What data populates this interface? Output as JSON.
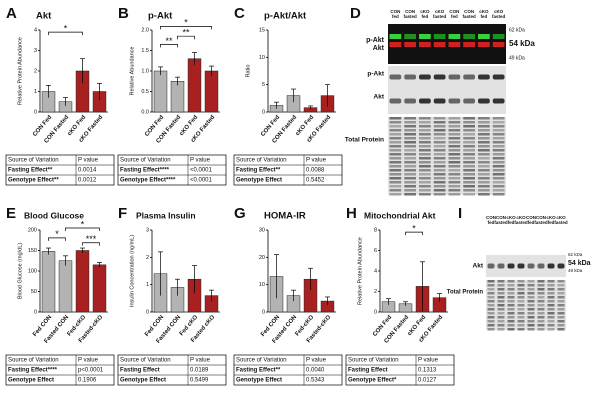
{
  "chart_data": [
    {
      "type": "bar",
      "panel": "A",
      "title": "Akt",
      "ylabel": "Relative Protein Abundance",
      "categories": [
        "CON Fed",
        "CON Fasted",
        "cKO Fed",
        "cKO Fasted"
      ],
      "values": [
        1.0,
        0.5,
        2.0,
        1.0
      ],
      "errors": [
        0.3,
        0.2,
        0.6,
        0.4
      ],
      "colors": [
        "#b3b3b3",
        "#b3b3b3",
        "#a82020",
        "#a82020"
      ],
      "ylim": [
        0,
        4
      ],
      "yticks": [
        0,
        1,
        2,
        3,
        4
      ],
      "annotations": [
        "*"
      ],
      "stats": {
        "header": [
          "Source of Variation",
          "P value"
        ],
        "rows": [
          [
            "Fasting Effect**",
            "0.0014"
          ],
          [
            "Genotype Effect**",
            "0.0012"
          ]
        ]
      }
    },
    {
      "type": "bar",
      "panel": "B",
      "title": "p-Akt",
      "ylabel": "Relative Abundance",
      "categories": [
        "CON Fed",
        "CON Fasted",
        "cKO Fed",
        "cKO Fasted"
      ],
      "values": [
        1.0,
        0.75,
        1.3,
        1.0
      ],
      "errors": [
        0.1,
        0.1,
        0.15,
        0.12
      ],
      "colors": [
        "#b3b3b3",
        "#b3b3b3",
        "#a82020",
        "#a82020"
      ],
      "ylim": [
        0,
        2
      ],
      "yticks": [
        {
          "value": 0,
          "label": "0.0"
        },
        {
          "value": 0.5,
          "label": "0.5"
        },
        {
          "value": 1,
          "label": "1.0"
        },
        {
          "value": 1.5,
          "label": "1.5"
        },
        {
          "value": 2,
          "label": "2.0"
        }
      ],
      "annotations": [
        "*",
        "**",
        "**"
      ],
      "stats": {
        "header": [
          "Source of Variation",
          "P value"
        ],
        "rows": [
          [
            "Fasting Effect****",
            "<0.0001"
          ],
          [
            "Genotype Effect****",
            "<0.0001"
          ]
        ]
      }
    },
    {
      "type": "bar",
      "panel": "C",
      "title": "p-Akt/Akt",
      "ylabel": "Ratio",
      "categories": [
        "CON Fed",
        "CON Fasted",
        "cKO Fed",
        "cKO Fasted"
      ],
      "values": [
        1.2,
        3.0,
        0.8,
        3.0
      ],
      "errors": [
        0.6,
        1.2,
        0.3,
        2.0
      ],
      "colors": [
        "#b3b3b3",
        "#b3b3b3",
        "#a82020",
        "#a82020"
      ],
      "ylim": [
        0,
        15
      ],
      "yticks": [
        0,
        5,
        10,
        15
      ],
      "annotations": [],
      "stats": {
        "header": [
          "Source of Variation",
          "P value"
        ],
        "rows": [
          [
            "Fasting Effect**",
            "0.0088"
          ],
          [
            "Genotype Effect",
            "0.5452"
          ]
        ]
      }
    },
    {
      "type": "bar",
      "panel": "E",
      "title": "Blood Glucose",
      "ylabel": "Blood Glucose (mg/dL)",
      "categories": [
        "Fed CON",
        "Fasted CON",
        "Fed-cKO",
        "Fasted-cKO"
      ],
      "values": [
        148,
        125,
        150,
        115
      ],
      "errors": [
        8,
        12,
        6,
        6
      ],
      "colors": [
        "#b3b3b3",
        "#b3b3b3",
        "#a82020",
        "#a82020"
      ],
      "ylim": [
        0,
        200
      ],
      "yticks": [
        0,
        50,
        100,
        150,
        200
      ],
      "annotations": [
        "*",
        "*",
        "***"
      ],
      "stats": {
        "header": [
          "Source of Variation",
          "P value"
        ],
        "rows": [
          [
            "Fasting Effect****",
            "p<0.0001"
          ],
          [
            "Genotype Effect",
            "0.1906"
          ]
        ]
      }
    },
    {
      "type": "bar",
      "panel": "F",
      "title": "Plasma Insulin",
      "ylabel": "Insulin Concentration (ng/mL)",
      "categories": [
        "Fed CON",
        "Fasted CON",
        "Fed cKO",
        "Fasted cKO"
      ],
      "values": [
        1.4,
        0.9,
        1.2,
        0.6
      ],
      "errors": [
        0.8,
        0.3,
        0.5,
        0.2
      ],
      "colors": [
        "#b3b3b3",
        "#b3b3b3",
        "#a82020",
        "#a82020"
      ],
      "ylim": [
        0,
        3
      ],
      "yticks": [
        0,
        1,
        2,
        3
      ],
      "annotations": [],
      "stats": {
        "header": [
          "Source of Variation",
          "P value"
        ],
        "rows": [
          [
            "Fasting Effect",
            "0.0189"
          ],
          [
            "Genotype Effect",
            "0.5499"
          ]
        ]
      }
    },
    {
      "type": "bar",
      "panel": "G",
      "title": "HOMA-IR",
      "ylabel": "",
      "categories": [
        "Fed CON",
        "Fasted CON",
        "Fed-cKO",
        "Fasted-cKO"
      ],
      "values": [
        13,
        6,
        12,
        4
      ],
      "errors": [
        8,
        2,
        4,
        1.5
      ],
      "colors": [
        "#b3b3b3",
        "#b3b3b3",
        "#a82020",
        "#a82020"
      ],
      "ylim": [
        0,
        30
      ],
      "yticks": [
        0,
        10,
        20,
        30
      ],
      "annotations": [],
      "stats": {
        "header": [
          "Source of Variation",
          "P value"
        ],
        "rows": [
          [
            "Fasting Effect**",
            "0.0040"
          ],
          [
            "Genotype Effect",
            "0.5343"
          ]
        ]
      }
    },
    {
      "type": "bar",
      "panel": "H",
      "title": "Mitochondrial Akt",
      "ylabel": "Relative Protein Abundance",
      "categories": [
        "CON Fed",
        "CON Fasted",
        "cKO Fed",
        "cKO Fasted"
      ],
      "values": [
        1.0,
        0.8,
        2.5,
        1.4
      ],
      "errors": [
        0.3,
        0.2,
        2.4,
        0.4
      ],
      "colors": [
        "#b3b3b3",
        "#b3b3b3",
        "#a82020",
        "#a82020"
      ],
      "ylim": [
        0,
        8
      ],
      "yticks": [
        0,
        2,
        4,
        6,
        8
      ],
      "annotations": [
        "*"
      ],
      "stats": {
        "header": [
          "Source of Variation",
          "P value"
        ],
        "rows": [
          [
            "Fasting Effect",
            "0.1313"
          ],
          [
            "Genotype Effect*",
            "0.0127"
          ]
        ]
      }
    }
  ],
  "blots": [
    {
      "panel": "D",
      "lane_top": [
        "CON",
        "CON",
        "cKO",
        "cKO",
        "CON",
        "CON",
        "cKO",
        "cKO"
      ],
      "lane_bottom": [
        "fed",
        "fasted",
        "fed",
        "fasted",
        "fed",
        "fasted",
        "fed",
        "fasted"
      ],
      "markers": [
        "62 kDa",
        "54 kDa",
        "49 kDa"
      ],
      "rows": [
        "p-Akt",
        "Akt",
        "p-Akt",
        "Akt",
        "Total Protein"
      ]
    },
    {
      "panel": "I",
      "lane_top": [
        "CON",
        "CON",
        "cKO",
        "cKO",
        "CON",
        "CON",
        "cKO",
        "cKO"
      ],
      "lane_bottom": [
        "fed",
        "fasted",
        "fed",
        "fasted",
        "fed",
        "fasted",
        "fed",
        "fasted"
      ],
      "markers": [
        "62 kDa",
        "54 kDa",
        "49 kDa"
      ],
      "rows": [
        "Akt",
        "Total Protein"
      ]
    }
  ]
}
